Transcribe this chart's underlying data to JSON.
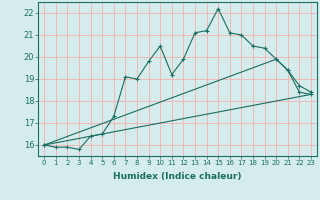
{
  "title": "",
  "xlabel": "Humidex (Indice chaleur)",
  "xlim": [
    -0.5,
    23.5
  ],
  "ylim": [
    15.5,
    22.5
  ],
  "yticks": [
    16,
    17,
    18,
    19,
    20,
    21,
    22
  ],
  "xticks": [
    0,
    1,
    2,
    3,
    4,
    5,
    6,
    7,
    8,
    9,
    10,
    11,
    12,
    13,
    14,
    15,
    16,
    17,
    18,
    19,
    20,
    21,
    22,
    23
  ],
  "bg_color": "#d4ecec",
  "line_color": "#1a6e62",
  "grid_color": "#f0b8b8",
  "line1_x": [
    0,
    1,
    2,
    3,
    4,
    5,
    6,
    7,
    8,
    9,
    10,
    11,
    12,
    13,
    14,
    15,
    16,
    17,
    18,
    19,
    20,
    21,
    22,
    23
  ],
  "line1_y": [
    16.0,
    15.9,
    15.9,
    15.8,
    16.4,
    16.5,
    17.3,
    19.1,
    19.0,
    19.8,
    20.5,
    19.2,
    19.9,
    21.1,
    21.2,
    22.2,
    21.1,
    21.0,
    20.5,
    20.4,
    19.9,
    19.4,
    18.4,
    18.3
  ],
  "line2_x": [
    0,
    20,
    21,
    22,
    23
  ],
  "line2_y": [
    16.0,
    19.9,
    19.4,
    18.7,
    18.4
  ],
  "line3_x": [
    0,
    23
  ],
  "line3_y": [
    16.0,
    18.3
  ]
}
